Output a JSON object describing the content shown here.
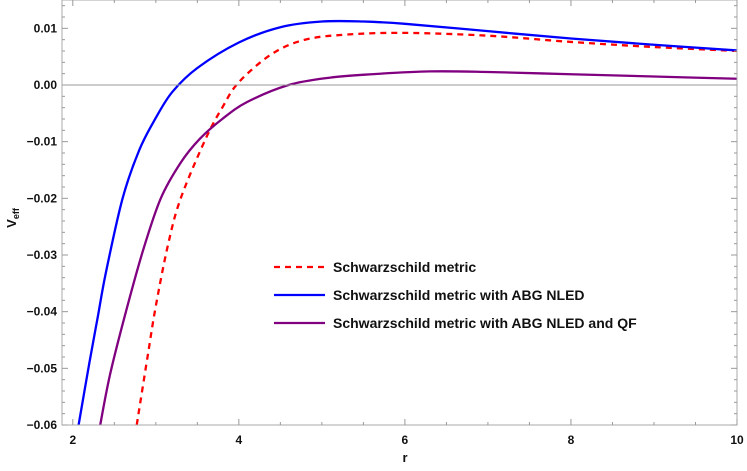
{
  "chart_data": {
    "type": "line",
    "title": "",
    "xlabel": "r",
    "ylabel": "V",
    "ylabel_subscript": "eff",
    "xlim": [
      1.87,
      10
    ],
    "ylim": [
      -0.06,
      0.015
    ],
    "xticks": [
      2,
      4,
      6,
      8,
      10
    ],
    "xtick_labels": [
      "2",
      "4",
      "6",
      "8",
      "10"
    ],
    "yticks": [
      -0.06,
      -0.05,
      -0.04,
      -0.03,
      -0.02,
      -0.01,
      0.0,
      0.01
    ],
    "ytick_labels": [
      "-0.06",
      "-0.05",
      "-0.04",
      "-0.03",
      "-0.02",
      "-0.01",
      "0.00",
      "0.01"
    ],
    "grid": false,
    "zero_line": true,
    "legend_position": "center-right",
    "series": [
      {
        "name": "Schwarzschild metric",
        "color": "#ff0000",
        "dashed": true,
        "x": [
          2.77,
          2.9,
          3.0,
          3.15,
          3.3,
          3.6,
          3.8,
          4.0,
          4.4,
          4.8,
          5.3,
          6.0,
          7.0,
          8.0,
          9.0,
          10.0
        ],
        "y": [
          -0.06,
          -0.048,
          -0.039,
          -0.028,
          -0.02,
          -0.0095,
          -0.004,
          0.0005,
          0.0055,
          0.008,
          0.0089,
          0.0092,
          0.0087,
          0.0076,
          0.0067,
          0.006
        ]
      },
      {
        "name": "Schwarzschild metric with ABG NLED",
        "color": "#0000ff",
        "dashed": false,
        "x": [
          2.07,
          2.2,
          2.3,
          2.4,
          2.6,
          2.8,
          3.0,
          3.2,
          3.5,
          4.0,
          4.5,
          5.0,
          5.5,
          6.0,
          7.0,
          8.0,
          9.0,
          10.0
        ],
        "y": [
          -0.06,
          -0.049,
          -0.041,
          -0.033,
          -0.02,
          -0.0115,
          -0.0058,
          -0.0012,
          0.003,
          0.0075,
          0.0102,
          0.0112,
          0.0112,
          0.0108,
          0.0095,
          0.0082,
          0.0071,
          0.0061
        ]
      },
      {
        "name": "Schwarzschild metric with ABG NLED and QF",
        "color": "#800080",
        "dashed": false,
        "x": [
          2.33,
          2.45,
          2.64,
          2.85,
          3.06,
          3.3,
          3.53,
          3.8,
          4.1,
          4.6,
          5.1,
          5.6,
          6.3,
          7.0,
          8.0,
          9.0,
          10.0
        ],
        "y": [
          -0.06,
          -0.051,
          -0.04,
          -0.029,
          -0.02,
          -0.0137,
          -0.0095,
          -0.006,
          -0.003,
          0.0,
          0.0013,
          0.0019,
          0.0024,
          0.0023,
          0.0019,
          0.0015,
          0.0011
        ]
      }
    ]
  }
}
